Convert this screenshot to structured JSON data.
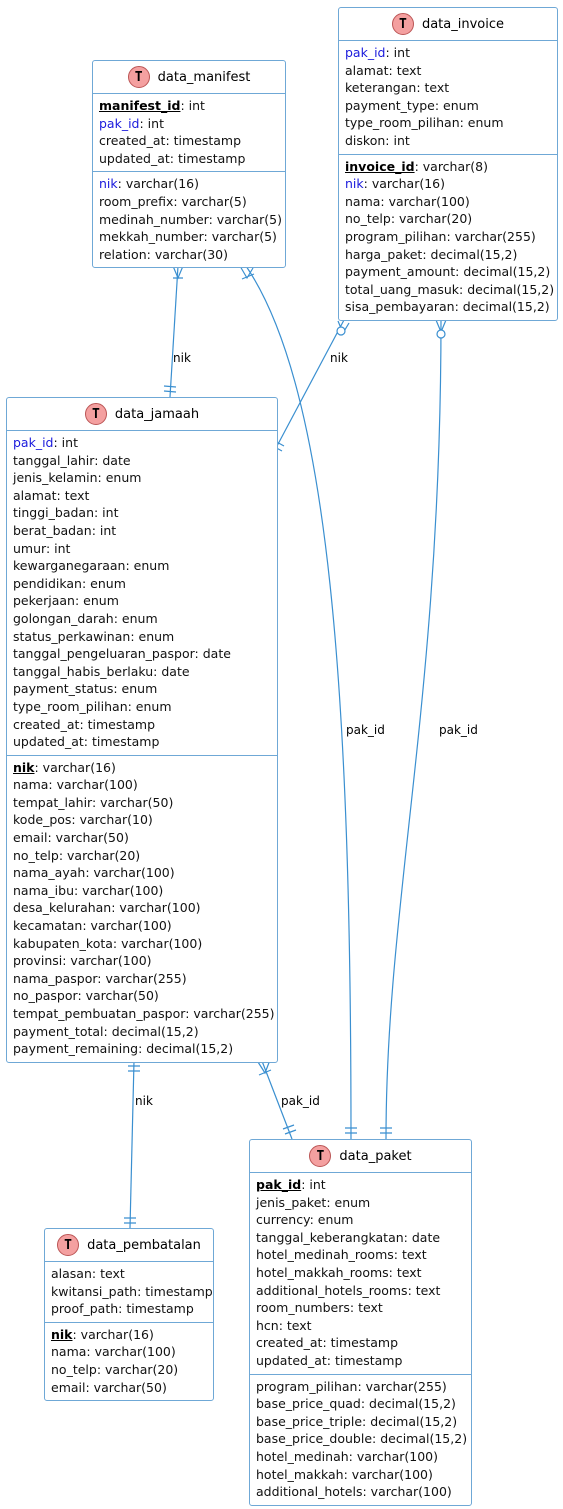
{
  "entities": {
    "data_manifest": {
      "name": "data_manifest",
      "sections": [
        [
          {
            "name": "manifest_id",
            "type": ": int",
            "kind": "pk"
          },
          {
            "name": "pak_id",
            "type": ": int",
            "kind": "fk"
          },
          {
            "name": "created_at",
            "type": ": timestamp",
            "kind": ""
          },
          {
            "name": "updated_at",
            "type": ": timestamp",
            "kind": ""
          }
        ],
        [
          {
            "name": "nik",
            "type": ": varchar(16)",
            "kind": "fk"
          },
          {
            "name": "room_prefix",
            "type": ": varchar(5)",
            "kind": ""
          },
          {
            "name": "medinah_number",
            "type": ": varchar(5)",
            "kind": ""
          },
          {
            "name": "mekkah_number",
            "type": ": varchar(5)",
            "kind": ""
          },
          {
            "name": "relation",
            "type": ": varchar(30)",
            "kind": ""
          }
        ]
      ]
    },
    "data_invoice": {
      "name": "data_invoice",
      "sections": [
        [
          {
            "name": "pak_id",
            "type": ": int",
            "kind": "fk"
          },
          {
            "name": "alamat",
            "type": ": text",
            "kind": ""
          },
          {
            "name": "keterangan",
            "type": ": text",
            "kind": ""
          },
          {
            "name": "payment_type",
            "type": ": enum",
            "kind": ""
          },
          {
            "name": "type_room_pilihan",
            "type": ": enum",
            "kind": ""
          },
          {
            "name": "diskon",
            "type": ": int",
            "kind": ""
          }
        ],
        [
          {
            "name": "invoice_id",
            "type": ": varchar(8)",
            "kind": "pk"
          },
          {
            "name": "nik",
            "type": ": varchar(16)",
            "kind": "fk"
          },
          {
            "name": "nama",
            "type": ": varchar(100)",
            "kind": ""
          },
          {
            "name": "no_telp",
            "type": ": varchar(20)",
            "kind": ""
          },
          {
            "name": "program_pilihan",
            "type": ": varchar(255)",
            "kind": ""
          },
          {
            "name": "harga_paket",
            "type": ": decimal(15,2)",
            "kind": ""
          },
          {
            "name": "payment_amount",
            "type": ": decimal(15,2)",
            "kind": ""
          },
          {
            "name": "total_uang_masuk",
            "type": ": decimal(15,2)",
            "kind": ""
          },
          {
            "name": "sisa_pembayaran",
            "type": ": decimal(15,2)",
            "kind": ""
          }
        ]
      ]
    },
    "data_jamaah": {
      "name": "data_jamaah",
      "sections": [
        [
          {
            "name": "pak_id",
            "type": ": int",
            "kind": "fk"
          },
          {
            "name": "tanggal_lahir",
            "type": ": date",
            "kind": ""
          },
          {
            "name": "jenis_kelamin",
            "type": ": enum",
            "kind": ""
          },
          {
            "name": "alamat",
            "type": ": text",
            "kind": ""
          },
          {
            "name": "tinggi_badan",
            "type": ": int",
            "kind": ""
          },
          {
            "name": "berat_badan",
            "type": ": int",
            "kind": ""
          },
          {
            "name": "umur",
            "type": ": int",
            "kind": ""
          },
          {
            "name": "kewarganegaraan",
            "type": ": enum",
            "kind": ""
          },
          {
            "name": "pendidikan",
            "type": ": enum",
            "kind": ""
          },
          {
            "name": "pekerjaan",
            "type": ": enum",
            "kind": ""
          },
          {
            "name": "golongan_darah",
            "type": ": enum",
            "kind": ""
          },
          {
            "name": "status_perkawinan",
            "type": ": enum",
            "kind": ""
          },
          {
            "name": "tanggal_pengeluaran_paspor",
            "type": ": date",
            "kind": ""
          },
          {
            "name": "tanggal_habis_berlaku",
            "type": ": date",
            "kind": ""
          },
          {
            "name": "payment_status",
            "type": ": enum",
            "kind": ""
          },
          {
            "name": "type_room_pilihan",
            "type": ": enum",
            "kind": ""
          },
          {
            "name": "created_at",
            "type": ": timestamp",
            "kind": ""
          },
          {
            "name": "updated_at",
            "type": ": timestamp",
            "kind": ""
          }
        ],
        [
          {
            "name": "nik",
            "type": ": varchar(16)",
            "kind": "pk"
          },
          {
            "name": "nama",
            "type": ": varchar(100)",
            "kind": ""
          },
          {
            "name": "tempat_lahir",
            "type": ": varchar(50)",
            "kind": ""
          },
          {
            "name": "kode_pos",
            "type": ": varchar(10)",
            "kind": ""
          },
          {
            "name": "email",
            "type": ": varchar(50)",
            "kind": ""
          },
          {
            "name": "no_telp",
            "type": ": varchar(20)",
            "kind": ""
          },
          {
            "name": "nama_ayah",
            "type": ": varchar(100)",
            "kind": ""
          },
          {
            "name": "nama_ibu",
            "type": ": varchar(100)",
            "kind": ""
          },
          {
            "name": "desa_kelurahan",
            "type": ": varchar(100)",
            "kind": ""
          },
          {
            "name": "kecamatan",
            "type": ": varchar(100)",
            "kind": ""
          },
          {
            "name": "kabupaten_kota",
            "type": ": varchar(100)",
            "kind": ""
          },
          {
            "name": "provinsi",
            "type": ": varchar(100)",
            "kind": ""
          },
          {
            "name": "nama_paspor",
            "type": ": varchar(255)",
            "kind": ""
          },
          {
            "name": "no_paspor",
            "type": ": varchar(50)",
            "kind": ""
          },
          {
            "name": "tempat_pembuatan_paspor",
            "type": ": varchar(255)",
            "kind": ""
          },
          {
            "name": "payment_total",
            "type": ": decimal(15,2)",
            "kind": ""
          },
          {
            "name": "payment_remaining",
            "type": ": decimal(15,2)",
            "kind": ""
          }
        ]
      ]
    },
    "data_pembatalan": {
      "name": "data_pembatalan",
      "sections": [
        [
          {
            "name": "alasan",
            "type": ": text",
            "kind": ""
          },
          {
            "name": "kwitansi_path",
            "type": ": timestamp",
            "kind": ""
          },
          {
            "name": "proof_path",
            "type": ": timestamp",
            "kind": ""
          }
        ],
        [
          {
            "name": "nik",
            "type": ": varchar(16)",
            "kind": "pk"
          },
          {
            "name": "nama",
            "type": ": varchar(100)",
            "kind": ""
          },
          {
            "name": "no_telp",
            "type": ": varchar(20)",
            "kind": ""
          },
          {
            "name": "email",
            "type": ": varchar(50)",
            "kind": ""
          }
        ]
      ]
    },
    "data_paket": {
      "name": "data_paket",
      "sections": [
        [
          {
            "name": "pak_id",
            "type": ": int",
            "kind": "pk"
          },
          {
            "name": "jenis_paket",
            "type": ": enum",
            "kind": ""
          },
          {
            "name": "currency",
            "type": ": enum",
            "kind": ""
          },
          {
            "name": "tanggal_keberangkatan",
            "type": ": date",
            "kind": ""
          },
          {
            "name": "hotel_medinah_rooms",
            "type": ": text",
            "kind": ""
          },
          {
            "name": "hotel_makkah_rooms",
            "type": ": text",
            "kind": ""
          },
          {
            "name": "additional_hotels_rooms",
            "type": ": text",
            "kind": ""
          },
          {
            "name": "room_numbers",
            "type": ": text",
            "kind": ""
          },
          {
            "name": "hcn",
            "type": ": text",
            "kind": ""
          },
          {
            "name": "created_at",
            "type": ": timestamp",
            "kind": ""
          },
          {
            "name": "updated_at",
            "type": ": timestamp",
            "kind": ""
          }
        ],
        [
          {
            "name": "program_pilihan",
            "type": ": varchar(255)",
            "kind": ""
          },
          {
            "name": "base_price_quad",
            "type": ": decimal(15,2)",
            "kind": ""
          },
          {
            "name": "base_price_triple",
            "type": ": decimal(15,2)",
            "kind": ""
          },
          {
            "name": "base_price_double",
            "type": ": decimal(15,2)",
            "kind": ""
          },
          {
            "name": "hotel_medinah",
            "type": ": varchar(100)",
            "kind": ""
          },
          {
            "name": "hotel_makkah",
            "type": ": varchar(100)",
            "kind": ""
          },
          {
            "name": "additional_hotels",
            "type": ": varchar(100)",
            "kind": ""
          }
        ]
      ]
    }
  },
  "relations": [
    {
      "id": "manifest-jamaah",
      "label": "nik"
    },
    {
      "id": "invoice-jamaah",
      "label": "nik"
    },
    {
      "id": "manifest-paket",
      "label": "pak_id"
    },
    {
      "id": "invoice-paket",
      "label": "pak_id"
    },
    {
      "id": "jamaah-pembatalan",
      "label": "nik"
    },
    {
      "id": "jamaah-paket",
      "label": "pak_id"
    }
  ],
  "colors": {
    "border": "#6fa8d6",
    "edge": "#3a8fd0",
    "icon_fill": "#f4a0a0",
    "fk_text": "#1a1adc"
  },
  "icon": {
    "glyph": "T",
    "name": "table-icon"
  }
}
